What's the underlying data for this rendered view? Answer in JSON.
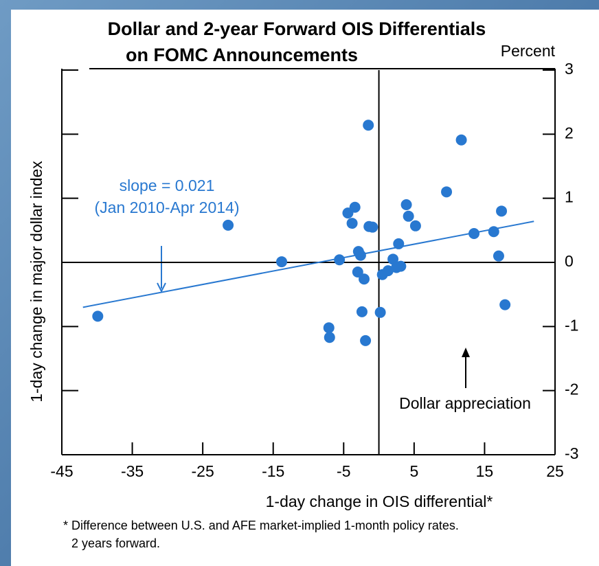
{
  "chart_data": {
    "type": "scatter",
    "title": [
      "Dollar and 2-year Forward OIS Differentials",
      "on FOMC Announcements"
    ],
    "x_label": "1-day change in OIS differential*",
    "y_label": "1-day change in major dollar index",
    "y_unit": "Percent",
    "annotations": [
      "slope = 0.021",
      "(Jan 2010-Apr 2014)",
      "Dollar appreciation"
    ],
    "footnote": [
      "* Difference between U.S. and AFE market-implied 1-month policy rates.",
      "2 years forward."
    ],
    "color": "#2878d0",
    "xlim": [
      -45,
      25
    ],
    "xticks": [
      -45,
      -35,
      -25,
      -15,
      -5,
      5,
      15,
      25
    ],
    "ylim": [
      -3,
      3
    ],
    "yticks": [
      -3,
      -2,
      -1,
      0,
      1,
      2,
      3
    ],
    "x": [
      -1.5,
      11.7,
      9.6,
      3.9,
      -3.4,
      -4.4,
      4.2,
      -3.8,
      -1.4,
      -0.9,
      5.2,
      17.4,
      -21.4,
      13.5,
      16.3,
      2.8,
      -2.9,
      -2.6,
      17.0,
      -13.8,
      -5.6,
      2.0,
      3.1,
      2.5,
      1.3,
      0.5,
      -3.0,
      -2.1,
      -39.9,
      -2.4,
      0.2,
      17.9,
      -7.1,
      -7.0,
      -1.9
    ],
    "y": [
      2.14,
      1.91,
      1.1,
      0.9,
      0.86,
      0.77,
      0.72,
      0.61,
      0.56,
      0.55,
      0.57,
      0.8,
      0.58,
      0.45,
      0.48,
      0.29,
      0.17,
      0.11,
      0.1,
      0.01,
      0.04,
      0.05,
      -0.06,
      -0.08,
      -0.13,
      -0.19,
      -0.15,
      -0.26,
      -0.84,
      -0.77,
      -0.78,
      -0.66,
      -1.02,
      -1.17,
      -1.22
    ],
    "fit_line": {
      "x": [
        -42,
        22
      ],
      "y": [
        -0.7,
        0.64
      ]
    }
  }
}
